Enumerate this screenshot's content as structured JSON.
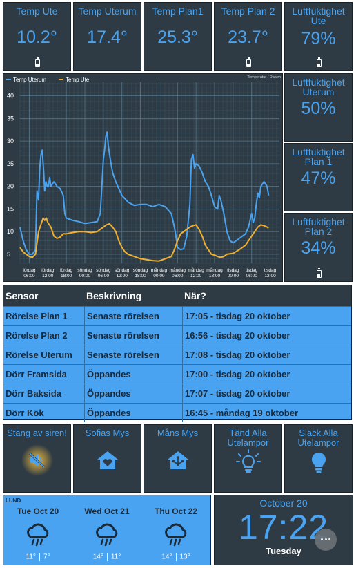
{
  "top_tiles": [
    {
      "title": "Temp Ute",
      "value": "10.2°",
      "battery": true
    },
    {
      "title": "Temp Uterum",
      "value": "17.4°",
      "battery": false
    },
    {
      "title": "Temp Plan1",
      "value": "25.3°",
      "battery": false
    },
    {
      "title": "Temp Plan 2",
      "value": "23.7°",
      "battery": true
    },
    {
      "title": "Luftfuktighet Ute",
      "value": "79%",
      "battery": true
    }
  ],
  "side_tiles": [
    {
      "title": "Luftfuktighet Uterum",
      "value": "50%",
      "battery": false
    },
    {
      "title": "Luftfuktighet Plan 1",
      "value": "47%",
      "battery": false
    },
    {
      "title": "Luftfuktighet Plan 2",
      "value": "34%",
      "battery": true
    }
  ],
  "chart_data": {
    "type": "line",
    "title": "Temperatur / Datum",
    "legend_position": "top-left",
    "grid": true,
    "ylim": [
      3,
      43
    ],
    "y_ticks": [
      5,
      10,
      15,
      20,
      25,
      30,
      35,
      40
    ],
    "x_tick_labels": [
      [
        "lördag",
        "06:00"
      ],
      [
        "lördag",
        "12:00"
      ],
      [
        "lördag",
        "18:00"
      ],
      [
        "söndag",
        "00:00"
      ],
      [
        "söndag",
        "06:00"
      ],
      [
        "söndag",
        "12:00"
      ],
      [
        "söndag",
        "18:00"
      ],
      [
        "måndag",
        "00:00"
      ],
      [
        "måndag",
        "06:00"
      ],
      [
        "måndag",
        "12:00"
      ],
      [
        "måndag",
        "18:00"
      ],
      [
        "tisdag",
        "00:00"
      ],
      [
        "tisdag",
        "06:00"
      ],
      [
        "tisdag",
        "12:00"
      ]
    ],
    "x_hours": [
      0,
      6,
      12,
      18,
      24,
      30,
      36,
      42,
      48,
      54,
      60,
      66,
      72,
      78
    ],
    "xlim": [
      -3,
      81
    ],
    "series": [
      {
        "name": "Temp Uterum",
        "color": "#4aa3f0",
        "points": [
          [
            -3,
            11
          ],
          [
            -2,
            8
          ],
          [
            -1,
            6
          ],
          [
            0,
            5
          ],
          [
            1,
            5
          ],
          [
            2,
            6
          ],
          [
            2.5,
            19
          ],
          [
            3,
            17
          ],
          [
            3.4,
            24
          ],
          [
            3.8,
            27
          ],
          [
            4.2,
            28
          ],
          [
            4.6,
            24
          ],
          [
            5,
            19
          ],
          [
            5.4,
            21
          ],
          [
            5.8,
            20
          ],
          [
            6.2,
            20
          ],
          [
            6.6,
            22
          ],
          [
            7,
            20
          ],
          [
            8,
            21
          ],
          [
            9,
            20
          ],
          [
            10,
            19.5
          ],
          [
            11,
            18
          ],
          [
            11.5,
            14
          ],
          [
            12,
            13
          ],
          [
            14,
            12.5
          ],
          [
            16,
            12.2
          ],
          [
            18,
            11.8
          ],
          [
            20,
            12
          ],
          [
            22,
            12.2
          ],
          [
            23,
            14
          ],
          [
            24,
            26
          ],
          [
            24.4,
            28
          ],
          [
            24.8,
            31
          ],
          [
            25.2,
            32
          ],
          [
            25.6,
            29
          ],
          [
            26,
            27
          ],
          [
            26.5,
            25
          ],
          [
            27,
            23
          ],
          [
            28,
            21
          ],
          [
            30,
            18
          ],
          [
            32,
            16.5
          ],
          [
            34,
            15.8
          ],
          [
            36,
            16
          ],
          [
            38,
            16
          ],
          [
            40,
            15.5
          ],
          [
            42,
            16
          ],
          [
            44,
            15.5
          ],
          [
            46,
            14
          ],
          [
            47,
            11
          ],
          [
            47.5,
            9
          ],
          [
            48,
            6.5
          ],
          [
            49,
            6
          ],
          [
            50,
            6.2
          ],
          [
            51,
            9
          ],
          [
            52,
            16
          ],
          [
            52.5,
            26
          ],
          [
            53,
            27
          ],
          [
            53.5,
            24
          ],
          [
            54,
            25
          ],
          [
            55,
            24.5
          ],
          [
            56,
            23
          ],
          [
            57,
            21
          ],
          [
            58,
            20
          ],
          [
            59,
            18
          ],
          [
            60,
            15.5
          ],
          [
            61,
            15
          ],
          [
            61.5,
            18
          ],
          [
            62,
            17
          ],
          [
            63,
            14
          ],
          [
            64,
            10
          ],
          [
            65,
            8
          ],
          [
            66,
            7.5
          ],
          [
            67,
            8
          ],
          [
            68,
            8.5
          ],
          [
            69,
            9
          ],
          [
            70,
            9.5
          ],
          [
            71,
            11
          ],
          [
            72,
            14
          ],
          [
            72.5,
            12
          ],
          [
            73,
            13
          ],
          [
            73.5,
            16
          ],
          [
            74,
            18.5
          ],
          [
            74.5,
            17.5
          ],
          [
            75,
            20
          ],
          [
            76,
            21
          ],
          [
            77,
            20
          ],
          [
            77.5,
            18
          ]
        ]
      },
      {
        "name": "Temp Ute",
        "color": "#f0b030",
        "points": [
          [
            -3,
            6.5
          ],
          [
            -2,
            5.5
          ],
          [
            -1,
            5
          ],
          [
            0,
            4.5
          ],
          [
            1,
            4.3
          ],
          [
            2,
            5
          ],
          [
            3,
            10
          ],
          [
            4,
            12
          ],
          [
            4.5,
            13
          ],
          [
            5,
            12.5
          ],
          [
            5.5,
            13
          ],
          [
            6,
            12
          ],
          [
            7,
            11
          ],
          [
            8,
            9
          ],
          [
            9,
            8.5
          ],
          [
            10,
            8.8
          ],
          [
            11,
            9.5
          ],
          [
            12,
            9.5
          ],
          [
            14,
            9.8
          ],
          [
            16,
            10
          ],
          [
            18,
            10
          ],
          [
            20,
            9.8
          ],
          [
            22,
            10
          ],
          [
            24,
            11
          ],
          [
            25,
            11.5
          ],
          [
            26,
            11.7
          ],
          [
            27,
            11
          ],
          [
            28,
            10
          ],
          [
            29,
            8
          ],
          [
            30,
            6.5
          ],
          [
            31,
            5.5
          ],
          [
            32,
            5
          ],
          [
            34,
            4.5
          ],
          [
            36,
            4
          ],
          [
            38,
            3.8
          ],
          [
            40,
            3.6
          ],
          [
            42,
            3.5
          ],
          [
            44,
            4
          ],
          [
            46,
            4.5
          ],
          [
            47,
            6
          ],
          [
            48,
            8
          ],
          [
            49,
            9.5
          ],
          [
            50,
            10
          ],
          [
            51,
            10.5
          ],
          [
            52,
            11
          ],
          [
            53,
            11.3
          ],
          [
            54,
            11.5
          ],
          [
            55,
            10.5
          ],
          [
            56,
            9
          ],
          [
            57,
            7
          ],
          [
            58,
            6
          ],
          [
            59,
            5
          ],
          [
            60,
            4.8
          ],
          [
            61,
            4.5
          ],
          [
            62,
            4.3
          ],
          [
            63,
            4.5
          ],
          [
            64,
            5
          ],
          [
            66,
            5.2
          ],
          [
            68,
            6
          ],
          [
            70,
            7
          ],
          [
            71,
            8
          ],
          [
            72,
            9
          ],
          [
            73,
            10
          ],
          [
            74,
            11
          ],
          [
            75,
            11.5
          ],
          [
            76,
            11.3
          ],
          [
            77,
            11
          ],
          [
            77.5,
            10.8
          ]
        ]
      }
    ]
  },
  "sensor_table": {
    "headers": [
      "Sensor",
      "Beskrivning",
      "När?"
    ],
    "rows": [
      [
        "Rörelse Plan 1",
        "Senaste rörelsen",
        "17:05 - tisdag 20 oktober"
      ],
      [
        "Rörelse Plan 2",
        "Senaste rörelsen",
        "16:56 - tisdag 20 oktober"
      ],
      [
        "Rörelse Uterum",
        "Senaste rörelsen",
        "17:08 - tisdag 20 oktober"
      ],
      [
        "Dörr Framsida",
        "Öppandes",
        "17:00 - tisdag 20 oktober"
      ],
      [
        "Dörr Baksida",
        "Öppandes",
        "17:07 - tisdag 20 oktober"
      ],
      [
        "Dörr Kök",
        "Öppandes",
        "16:45 - måndag 19 oktober"
      ]
    ]
  },
  "buttons": [
    {
      "label": "Stäng av siren!",
      "icon": "speaker-muted-icon",
      "active": true
    },
    {
      "label": "Sofias Mys",
      "icon": "home-heart-icon",
      "active": false
    },
    {
      "label": "Måns Mys",
      "icon": "home-automation-icon",
      "active": false
    },
    {
      "label": "Tänd Alla Utelampor",
      "icon": "lightbulb-on-icon",
      "active": false
    },
    {
      "label": "Släck Alla Utelampor",
      "icon": "lightbulb-icon",
      "active": false
    }
  ],
  "weather": {
    "location": "LUND",
    "days": [
      {
        "name": "Tue Oct 20",
        "high": "11°",
        "low": "7°",
        "icon": "rain-cloud-icon"
      },
      {
        "name": "Wed Oct 21",
        "high": "14°",
        "low": "11°",
        "icon": "rain-cloud-icon"
      },
      {
        "name": "Thu Oct 22",
        "high": "14°",
        "low": "13°",
        "icon": "rain-cloud-icon"
      }
    ]
  },
  "clock": {
    "date": "October 20",
    "time": "17:22",
    "weekday": "Tuesday"
  },
  "colors": {
    "tile_bg": "#2f3b44",
    "accent": "#4aa3f0",
    "series_ute": "#f0b030",
    "active_glow": "#f5c040"
  }
}
